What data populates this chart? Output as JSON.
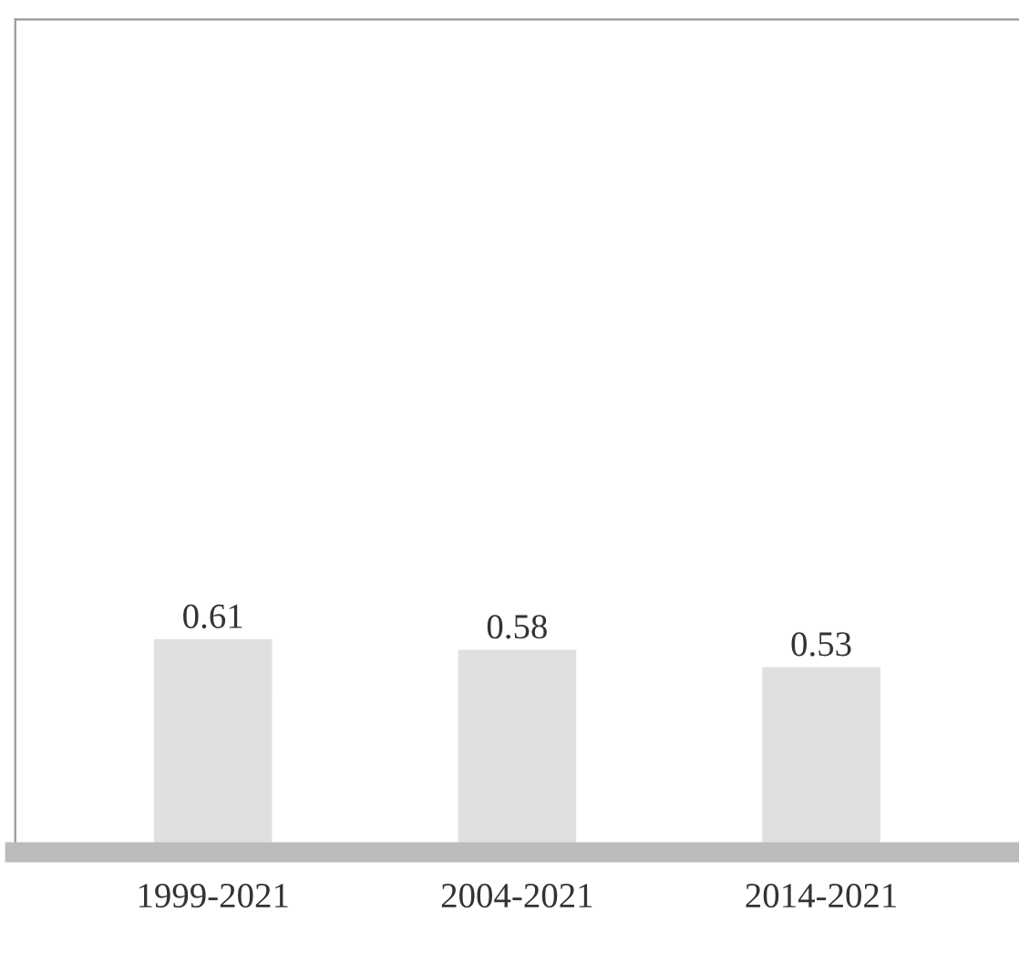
{
  "chart_data": {
    "type": "bar",
    "categories": [
      "1999-2021",
      "2004-2021",
      "2014-2021"
    ],
    "values": [
      0.61,
      0.58,
      0.53
    ],
    "color": "#e0e0e0",
    "ylim": [
      0,
      2.4
    ],
    "data_labels": true,
    "grid": false,
    "tick_labels": "x"
  }
}
